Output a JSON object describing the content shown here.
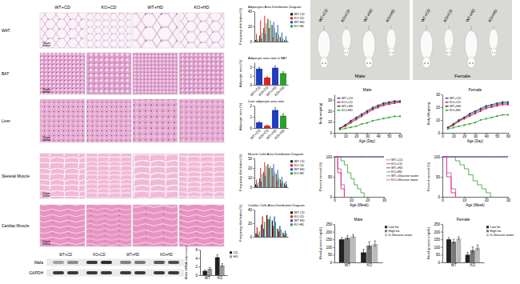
{
  "histology": {
    "columns": [
      "WT+CD",
      "KO+CD",
      "WT+HD",
      "KO+HD"
    ],
    "rows": [
      "WAT",
      "BAT",
      "Liver",
      "Skeletal Muscle",
      "Cardiac Muscle"
    ],
    "scale_bar": "50μm"
  },
  "western_blot": {
    "columns": [
      "WT+CD",
      "KO+CD",
      "WT+HD",
      "KO+HD"
    ],
    "rows": [
      "Mafa",
      "GAPDH"
    ]
  },
  "photo": {
    "groups": [
      "WT+CD",
      "KO+CD",
      "WT+HD",
      "KO+HD"
    ],
    "sexes": [
      "Male",
      "Female"
    ]
  },
  "chart_data": [
    {
      "type": "bar",
      "title": "Adipocytes Area Distribution Diagram",
      "y_label": "Frequency distribution(%)",
      "categories": [
        null,
        null,
        null,
        null,
        null,
        null,
        null,
        null
      ],
      "series": [
        {
          "name": "WT CD",
          "color": "#111111",
          "values": [
            2,
            8,
            18,
            30,
            22,
            12,
            6,
            2
          ]
        },
        {
          "name": "KO CD",
          "color": "#e31a1c",
          "values": [
            10,
            28,
            34,
            18,
            6,
            3,
            1,
            0
          ]
        },
        {
          "name": "WT HD",
          "color": "#1f4fd8",
          "values": [
            1,
            4,
            10,
            18,
            26,
            22,
            12,
            7
          ]
        },
        {
          "name": "KO HD",
          "color": "#2ca02c",
          "values": [
            3,
            12,
            24,
            28,
            18,
            9,
            4,
            2
          ]
        }
      ],
      "ylim": [
        0,
        40
      ],
      "yticks": [
        0,
        20,
        40
      ],
      "tick_labels": "y",
      "legend": "right"
    },
    {
      "type": "bar",
      "title": "Adipocyte area ratio in BAT",
      "y_label": "Adipocyte area (%)",
      "categories": [
        "WT+CD",
        "KO+CD",
        "WT+HD",
        "KO+HD"
      ],
      "values": [
        1.8,
        0.8,
        1.9,
        1.3
      ],
      "errors": [
        0.15,
        0.1,
        0.2,
        0.15
      ],
      "colors": [
        "#1f3fbf",
        "#e02020",
        "#1f3fbf",
        "#2ca02c"
      ],
      "ylim": [
        0,
        2.5
      ],
      "yticks": [
        0,
        1,
        2
      ]
    },
    {
      "type": "bar",
      "title": "Liver adipocyte area ratio",
      "y_label": "Adipocyte area (%)",
      "categories": [
        "WT+CD",
        "KO+CD",
        "WT+HD",
        "KO+HD"
      ],
      "values": [
        0.5,
        0.2,
        1.6,
        1.1
      ],
      "errors": [
        0.08,
        0.05,
        0.2,
        0.15
      ],
      "colors": [
        "#1f3fbf",
        "#e02020",
        "#1f3fbf",
        "#2ca02c"
      ],
      "ylim": [
        0,
        2
      ],
      "yticks": [
        0,
        1,
        2
      ]
    },
    {
      "type": "bar",
      "title": "Muscle Cells Area Distribution Diagram",
      "y_label": "Frequency distribution(%)",
      "categories": [
        null,
        null,
        null,
        null,
        null,
        null,
        null,
        null
      ],
      "series": [
        {
          "name": "WT CD",
          "color": "#111111",
          "values": [
            3,
            9,
            16,
            24,
            20,
            14,
            8,
            4
          ]
        },
        {
          "name": "KO CD",
          "color": "#e31a1c",
          "values": [
            8,
            20,
            26,
            20,
            12,
            7,
            4,
            2
          ]
        },
        {
          "name": "WT HD",
          "color": "#1f4fd8",
          "values": [
            2,
            6,
            12,
            20,
            24,
            18,
            11,
            6
          ]
        },
        {
          "name": "KO HD",
          "color": "#2ca02c",
          "values": [
            5,
            14,
            22,
            22,
            16,
            10,
            6,
            3
          ]
        }
      ],
      "ylim": [
        0,
        30
      ],
      "yticks": [
        0,
        10,
        20,
        30
      ],
      "tick_labels": "y",
      "legend": "right"
    },
    {
      "type": "bar",
      "title": "Cardiac Cells Area Distribution Diagram",
      "y_label": "Frequency distribution(%)",
      "categories": [
        null,
        null,
        null,
        null,
        null,
        null
      ],
      "series": [
        {
          "name": "WT CD",
          "color": "#111111",
          "values": [
            5,
            18,
            32,
            24,
            12,
            6
          ]
        },
        {
          "name": "KO CD",
          "color": "#e31a1c",
          "values": [
            14,
            30,
            26,
            16,
            8,
            3
          ]
        },
        {
          "name": "WT HD",
          "color": "#1f4fd8",
          "values": [
            3,
            12,
            26,
            30,
            16,
            9
          ]
        },
        {
          "name": "KO HD",
          "color": "#2ca02c",
          "values": [
            8,
            22,
            30,
            22,
            11,
            5
          ]
        }
      ],
      "ylim": [
        0,
        40
      ],
      "yticks": [
        0,
        20,
        40
      ],
      "tick_labels": "y",
      "legend": "right"
    },
    {
      "type": "bar",
      "y_label": "Mafa mRNA expression",
      "categories": [
        "WT",
        "KO"
      ],
      "series": [
        {
          "name": "CD",
          "color": "#222222",
          "values": [
            1.0,
            4.2
          ],
          "errors": [
            0.2,
            0.6
          ]
        },
        {
          "name": "HD",
          "color": "#999999",
          "values": [
            1.5,
            2.3
          ],
          "errors": [
            0.3,
            0.4
          ]
        }
      ],
      "ylim": [
        0,
        6
      ],
      "yticks": [
        0,
        2,
        4,
        6
      ],
      "legend": "right"
    },
    {
      "type": "line",
      "title": "Male",
      "x_label": "Age (Day)",
      "y_label": "Body weight(g)",
      "x": [
        5,
        10,
        15,
        20,
        25,
        30,
        35,
        40,
        45,
        50,
        55,
        60
      ],
      "series": [
        {
          "name": "WT+CD",
          "color": "#1f3fd8",
          "values": [
            4,
            7,
            10,
            13,
            16,
            19,
            22,
            24,
            26,
            27,
            28,
            28
          ]
        },
        {
          "name": "KO+CD",
          "color": "#e31a1c",
          "values": [
            4,
            6,
            9,
            12,
            15,
            18,
            21,
            23,
            25,
            26,
            27,
            28
          ]
        },
        {
          "name": "WT+HD",
          "color": "#333333",
          "values": [
            4,
            7,
            11,
            14,
            17,
            20,
            23,
            25,
            27,
            28,
            29,
            29
          ]
        },
        {
          "name": "KO+HD",
          "color": "#2ca02c",
          "values": [
            3,
            4,
            5,
            6,
            8,
            9,
            11,
            12,
            13,
            14,
            15,
            15
          ]
        }
      ],
      "xlim": [
        0,
        60
      ],
      "xticks": [
        0,
        10,
        20,
        30,
        40,
        50,
        60
      ],
      "ylim": [
        0,
        35
      ],
      "yticks": [
        0,
        10,
        20,
        30
      ],
      "marker": "circle",
      "legend": "top-left"
    },
    {
      "type": "line",
      "title": "Female",
      "x_label": "Age (Day)",
      "y_label": "Body Weighting",
      "x": [
        5,
        10,
        15,
        20,
        25,
        30,
        35,
        40,
        45,
        50,
        55,
        60
      ],
      "series": [
        {
          "name": "WT+CD",
          "color": "#1f3fd8",
          "values": [
            4,
            6,
            9,
            12,
            14,
            16,
            18,
            20,
            21,
            22,
            23,
            23
          ]
        },
        {
          "name": "KO+CD",
          "color": "#e31a1c",
          "values": [
            4,
            6,
            9,
            11,
            13,
            15,
            17,
            19,
            20,
            21,
            22,
            22
          ]
        },
        {
          "name": "WT+HD",
          "color": "#333333",
          "values": [
            4,
            7,
            10,
            12,
            15,
            17,
            19,
            21,
            22,
            23,
            24,
            24
          ]
        },
        {
          "name": "KO+HD",
          "color": "#2ca02c",
          "values": [
            3,
            4,
            5,
            6,
            7,
            8,
            10,
            11,
            12,
            13,
            14,
            14
          ]
        }
      ],
      "xlim": [
        0,
        60
      ],
      "xticks": [
        0,
        10,
        20,
        30,
        40,
        50,
        60
      ],
      "ylim": [
        0,
        30
      ],
      "yticks": [
        0,
        10,
        20,
        30
      ],
      "marker": "circle",
      "legend": "top-left"
    },
    {
      "type": "step",
      "x_label": "Age (Week)",
      "y_label": "Percent survival (%)",
      "x": [
        0,
        2,
        4,
        6,
        8,
        10,
        12,
        14,
        16,
        18,
        20,
        22,
        24,
        26,
        28,
        30
      ],
      "series": [
        {
          "name": "WT+CD",
          "color": "#1f3fd8",
          "line_style": "dashed",
          "values": [
            100,
            100,
            100,
            100,
            100,
            100,
            100,
            100,
            100,
            100,
            100,
            100,
            100,
            100,
            100,
            100
          ]
        },
        {
          "name": "KO+CD",
          "color": "#e31a1c",
          "values": [
            100,
            60,
            20,
            0,
            null,
            null,
            null,
            null,
            null,
            null,
            null,
            null,
            null,
            null,
            null,
            null
          ]
        },
        {
          "name": "WT+HD",
          "color": "#333333",
          "values": [
            100,
            100,
            100,
            100,
            100,
            100,
            100,
            100,
            100,
            100,
            100,
            100,
            100,
            100,
            100,
            100
          ]
        },
        {
          "name": "KO+HD",
          "color": "#2ca02c",
          "values": [
            100,
            100,
            90,
            80,
            60,
            45,
            30,
            20,
            10,
            0,
            null,
            null,
            null,
            null,
            null,
            null
          ]
        },
        {
          "name": "WT+Glucose water",
          "color": "#9467bd",
          "values": [
            100,
            100,
            100,
            100,
            100,
            100,
            100,
            100,
            100,
            100,
            100,
            100,
            100,
            100,
            100,
            100
          ]
        },
        {
          "name": "KO+Glucose water",
          "color": "#d62fd6",
          "values": [
            100,
            70,
            30,
            0,
            null,
            null,
            null,
            null,
            null,
            null,
            null,
            null,
            null,
            null,
            null,
            null
          ]
        }
      ],
      "xlim": [
        0,
        30
      ],
      "xticks": [
        0,
        10,
        20,
        30
      ],
      "ylim": [
        0,
        100
      ],
      "yticks": [
        0,
        50,
        100
      ],
      "legend": "right"
    },
    {
      "type": "step",
      "x_label": "Age (Week)",
      "y_label": "Percent survival (%)",
      "x": [
        0,
        2,
        4,
        6,
        8,
        10,
        12,
        14,
        16,
        18,
        20,
        22,
        24,
        26,
        28,
        30
      ],
      "series": [
        {
          "color": "#1f3fd8",
          "line_style": "dashed",
          "values": [
            100,
            100,
            100,
            100,
            100,
            100,
            100,
            100,
            100,
            100,
            100,
            100,
            100,
            100,
            100,
            100
          ]
        },
        {
          "color": "#e31a1c",
          "values": [
            100,
            50,
            10,
            0,
            null,
            null,
            null,
            null,
            null,
            null,
            null,
            null,
            null,
            null,
            null,
            null
          ]
        },
        {
          "color": "#333333",
          "values": [
            100,
            100,
            100,
            100,
            100,
            100,
            100,
            100,
            100,
            100,
            100,
            100,
            100,
            100,
            100,
            100
          ]
        },
        {
          "color": "#2ca02c",
          "values": [
            100,
            100,
            100,
            90,
            80,
            70,
            55,
            40,
            30,
            20,
            10,
            0,
            null,
            null,
            null,
            null
          ]
        },
        {
          "color": "#9467bd",
          "values": [
            100,
            100,
            100,
            100,
            100,
            100,
            100,
            100,
            100,
            100,
            100,
            100,
            100,
            100,
            100,
            100
          ]
        },
        {
          "color": "#d62fd6",
          "values": [
            100,
            60,
            20,
            0,
            null,
            null,
            null,
            null,
            null,
            null,
            null,
            null,
            null,
            null,
            null,
            null
          ]
        }
      ],
      "xlim": [
        0,
        30
      ],
      "xticks": [
        0,
        10,
        20,
        30
      ],
      "ylim": [
        0,
        100
      ],
      "yticks": [
        0,
        50,
        100
      ]
    },
    {
      "type": "bar",
      "title": "Male",
      "y_label": "Blood glucose (mg/dL)",
      "categories": [
        "WT",
        "KO"
      ],
      "series": [
        {
          "name": "Low fat",
          "color": "#222222",
          "values": [
            150,
            65
          ],
          "errors": [
            12,
            20
          ]
        },
        {
          "name": "High fat",
          "color": "#777777",
          "values": [
            160,
            110
          ],
          "errors": [
            15,
            25
          ]
        },
        {
          "name": "D-Glucose water",
          "color": "#bbbbbb",
          "values": [
            170,
            120
          ],
          "errors": [
            12,
            20
          ]
        }
      ],
      "ylim": [
        0,
        250
      ],
      "yticks": [
        0,
        50,
        100,
        150,
        200,
        250
      ],
      "legend": "right"
    },
    {
      "type": "bar",
      "title": "Female",
      "y_label": "Blood glucose (mg/dL)",
      "categories": [
        "WT",
        "KO"
      ],
      "series": [
        {
          "name": "Low fat",
          "color": "#222222",
          "values": [
            150,
            50
          ],
          "errors": [
            12,
            15
          ]
        },
        {
          "name": "High fat",
          "color": "#777777",
          "values": [
            135,
            80
          ],
          "errors": [
            15,
            20
          ]
        },
        {
          "name": "D-Glucose water",
          "color": "#bbbbbb",
          "values": [
            155,
            95
          ],
          "errors": [
            12,
            18
          ]
        }
      ],
      "ylim": [
        0,
        250
      ],
      "yticks": [
        0,
        50,
        100,
        150,
        200,
        250
      ],
      "legend": "right"
    }
  ]
}
